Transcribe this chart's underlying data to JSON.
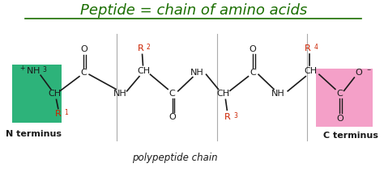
{
  "title": "Peptide = chain of amino acids",
  "title_color": "#1a6e00",
  "title_fontsize": 13,
  "bg_color": "#ffffff",
  "n_terminus_box_color": "#2db37a",
  "c_terminus_box_color": "#f4a0c8",
  "label_color_black": "#1a1a1a",
  "label_color_red": "#cc2200",
  "n_terminus_label": "N terminus",
  "c_terminus_label": "C terminus",
  "polypeptide_label": "polypeptide chain"
}
